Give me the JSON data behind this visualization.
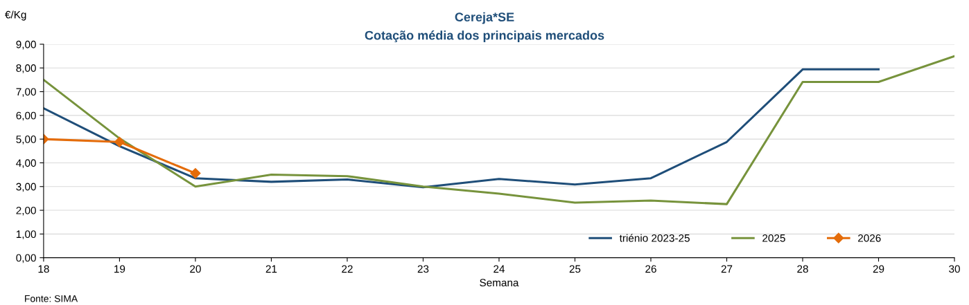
{
  "chart_data": {
    "type": "line",
    "title": "Cereja*SE",
    "subtitle": "Cotação média dos principais mercados",
    "xlabel": "Semana",
    "ylabel": "€/Kg",
    "x": [
      18,
      19,
      20,
      21,
      22,
      23,
      24,
      25,
      26,
      27,
      28,
      29,
      30
    ],
    "series": [
      {
        "name": "triénio 2023-25",
        "color": "#1f4e79",
        "marker": "none",
        "values": [
          6.3,
          4.7,
          3.35,
          3.2,
          3.3,
          2.97,
          3.32,
          3.09,
          3.35,
          4.88,
          7.94,
          7.94,
          null
        ]
      },
      {
        "name": "2025",
        "color": "#77933c",
        "marker": "none",
        "values": [
          7.5,
          5.03,
          3.0,
          3.5,
          3.44,
          3.0,
          2.7,
          2.32,
          2.41,
          2.26,
          7.41,
          7.41,
          8.5
        ]
      },
      {
        "name": "2026",
        "color": "#e46c0a",
        "marker": "diamond",
        "values": [
          5.0,
          4.88,
          3.56,
          null,
          null,
          null,
          null,
          null,
          null,
          null,
          null,
          null,
          null
        ]
      }
    ],
    "xlim": [
      18,
      30
    ],
    "xticks": [
      18,
      19,
      20,
      21,
      22,
      23,
      24,
      25,
      26,
      27,
      28,
      29,
      30
    ],
    "ylim": [
      0,
      9
    ],
    "yticks": [
      {
        "value": 0,
        "label": "0,00"
      },
      {
        "value": 1,
        "label": "1,00"
      },
      {
        "value": 2,
        "label": "2,00"
      },
      {
        "value": 3,
        "label": "3,00"
      },
      {
        "value": 4,
        "label": "4,00"
      },
      {
        "value": 5,
        "label": "5,00"
      },
      {
        "value": 6,
        "label": "6,00"
      },
      {
        "value": 7,
        "label": "7,00"
      },
      {
        "value": 8,
        "label": "8,00"
      },
      {
        "value": 9,
        "label": "9,00"
      }
    ],
    "grid": "y",
    "legend": "bottom right",
    "line_style": "solid",
    "annotations": [
      "Fonte: SIMA"
    ]
  }
}
